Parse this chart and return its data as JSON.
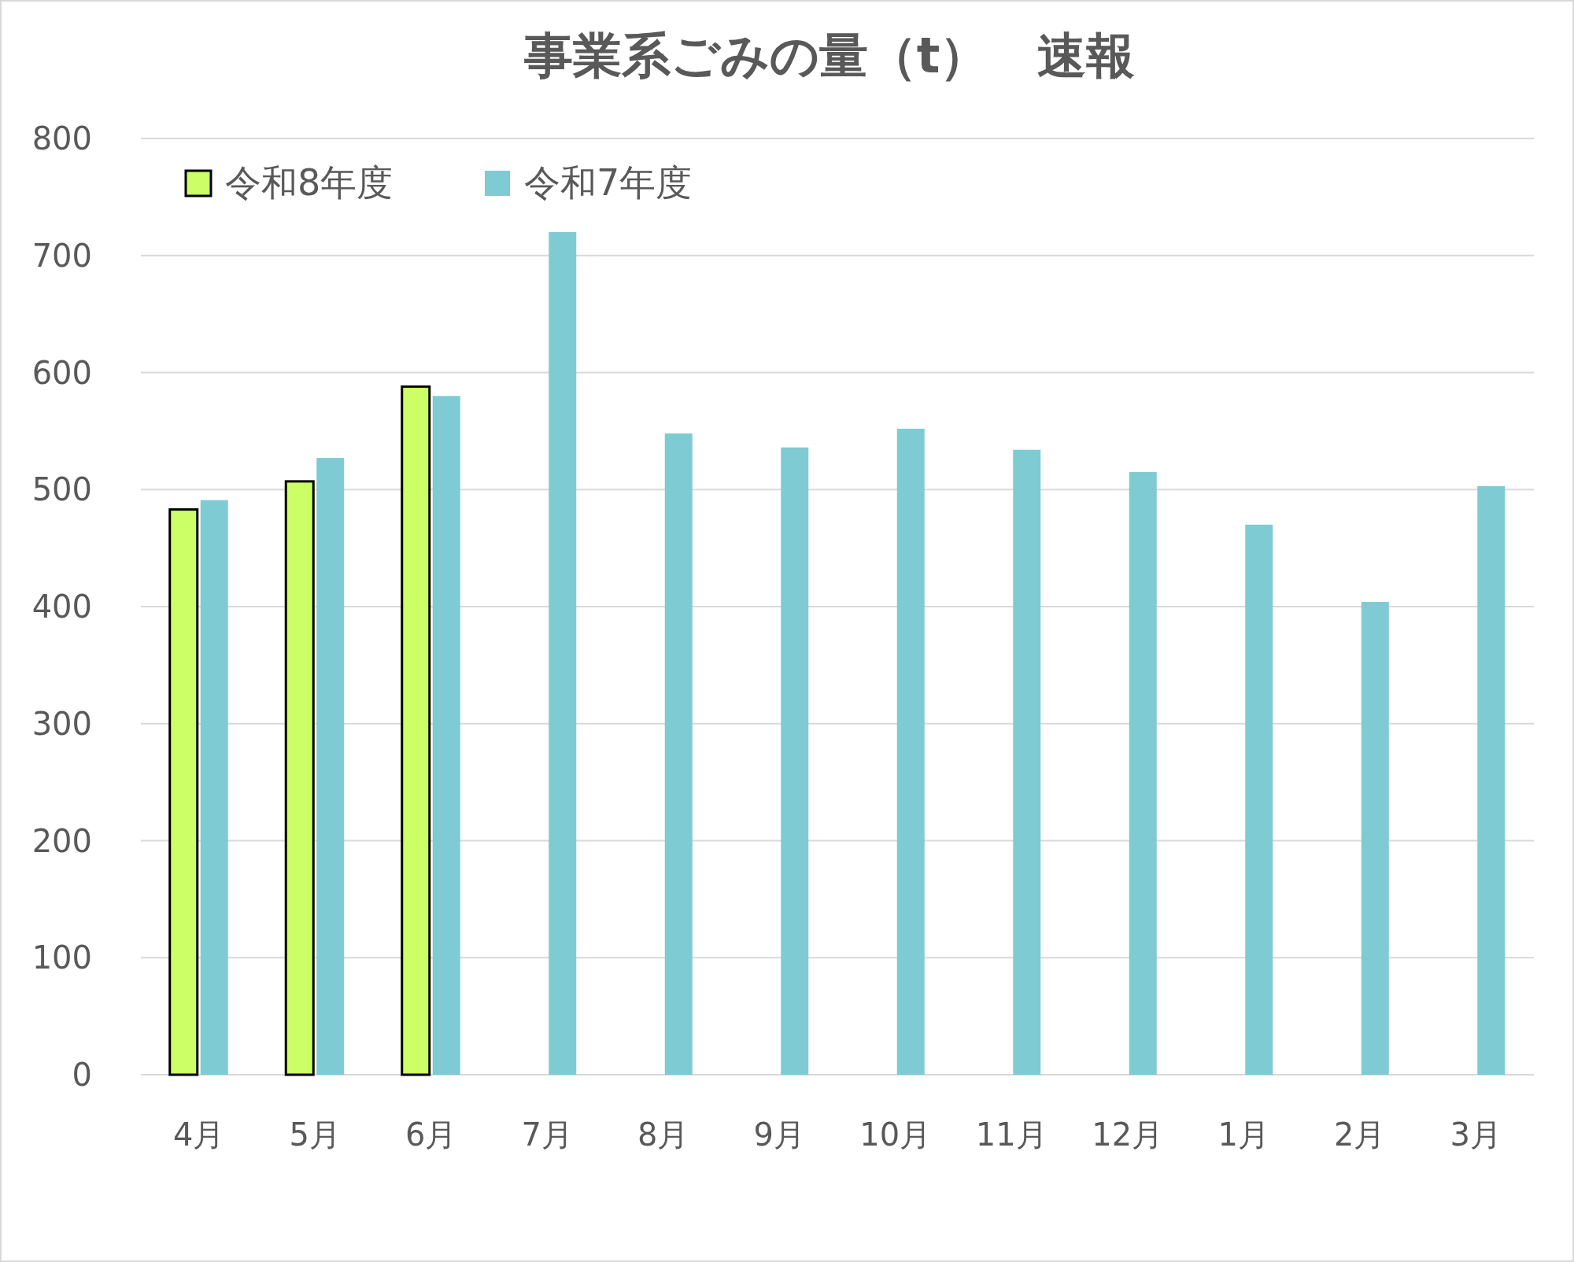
{
  "chart_data": {
    "type": "bar",
    "title": "事業系ごみの量（t）　速報",
    "categories": [
      "4月",
      "5月",
      "6月",
      "7月",
      "8月",
      "9月",
      "10月",
      "11月",
      "12月",
      "1月",
      "2月",
      "3月"
    ],
    "series": [
      {
        "name": "令和8年度",
        "color": "#ccff66",
        "values": [
          483,
          507,
          588,
          null,
          null,
          null,
          null,
          null,
          null,
          null,
          null,
          null
        ]
      },
      {
        "name": "令和7年度",
        "color": "#7ecbd3",
        "values": [
          491,
          527,
          580,
          720,
          548,
          536,
          552,
          534,
          515,
          470,
          404,
          503
        ]
      }
    ],
    "ylim": [
      0,
      800
    ],
    "yticks": [
      0,
      100,
      200,
      300,
      400,
      500,
      600,
      700,
      800
    ],
    "grid": "y",
    "legend": "top left"
  }
}
